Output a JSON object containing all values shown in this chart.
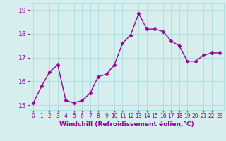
{
  "x": [
    0,
    1,
    2,
    3,
    4,
    5,
    6,
    7,
    8,
    9,
    10,
    11,
    12,
    13,
    14,
    15,
    16,
    17,
    18,
    19,
    20,
    21,
    22,
    23
  ],
  "y": [
    15.1,
    15.8,
    16.4,
    16.7,
    15.2,
    15.1,
    15.2,
    15.5,
    16.2,
    16.3,
    16.7,
    17.6,
    17.95,
    18.85,
    18.2,
    18.2,
    18.1,
    17.7,
    17.5,
    16.85,
    16.85,
    17.1,
    17.2,
    17.2
  ],
  "line_color": "#990099",
  "marker": "D",
  "markersize": 2.5,
  "linewidth": 1.0,
  "xlabel": "Windchill (Refroidissement éolien,°C)",
  "xlabel_color": "#990099",
  "xlabel_fontsize": 6.5,
  "xtick_labels": [
    "0",
    "1",
    "2",
    "3",
    "4",
    "5",
    "6",
    "7",
    "8",
    "9",
    "10",
    "11",
    "12",
    "13",
    "14",
    "15",
    "16",
    "17",
    "18",
    "19",
    "20",
    "21",
    "22",
    "23"
  ],
  "xtick_fontsize": 5.5,
  "ytick_fontsize": 6.5,
  "ylim": [
    14.8,
    19.3
  ],
  "yticks": [
    15,
    16,
    17,
    18,
    19
  ],
  "background_color": "#d6eeee",
  "grid_color": "#aadddd",
  "xlim_left": -0.5,
  "xlim_right": 23.5
}
